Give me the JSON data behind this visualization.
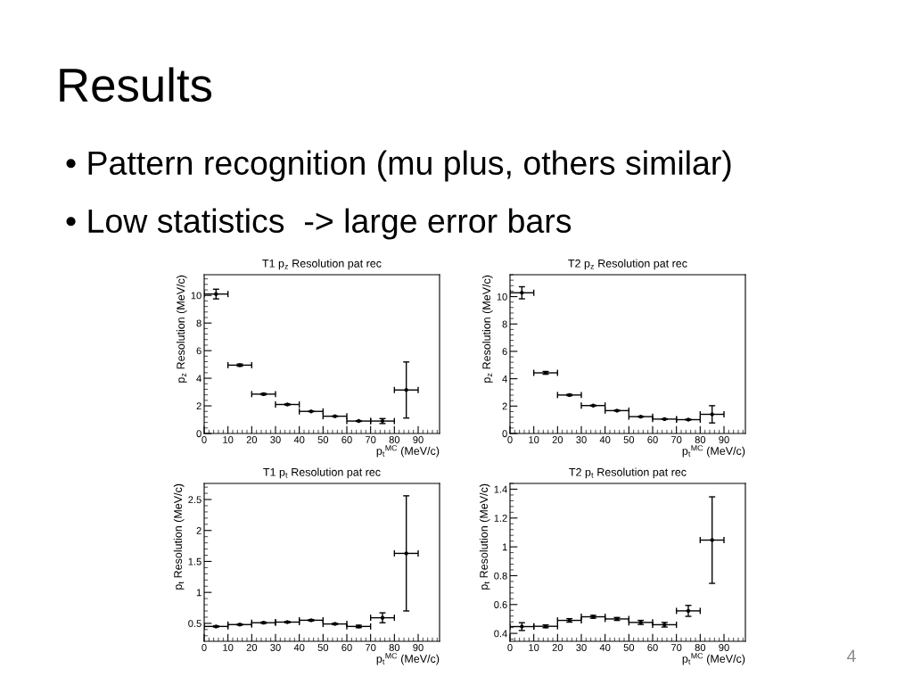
{
  "chart_data": [
    {
      "type": "other",
      "title": "Results",
      "annotations": [
        "• Pattern recognition (mu plus, others similar)",
        "• Low statistics  -> large error bars",
        "4"
      ]
    },
    {
      "type": "scatter",
      "title": "T1 p$_{z}$ Resolution pat rec",
      "xlabel": "p$_{t}$$^{MC}$ (MeV/c)",
      "ylabel": "p$_{z}$ Resolution (MeV/c)",
      "x": [
        5,
        15,
        25,
        35,
        45,
        55,
        65,
        75,
        85
      ],
      "values": [
        10.1,
        4.95,
        2.85,
        2.1,
        1.6,
        1.25,
        0.9,
        0.9,
        3.15
      ],
      "errors": [
        0.35,
        0.08,
        0.05,
        0.04,
        0.02,
        0.02,
        0.03,
        0.18,
        2.03
      ],
      "xerrors": [
        5,
        5,
        5,
        5,
        5,
        5,
        5,
        5,
        5
      ],
      "color": "#000000",
      "marker": "circle",
      "xlim": [
        0,
        99
      ],
      "xticks": [
        0,
        10,
        20,
        30,
        40,
        50,
        60,
        70,
        80,
        90
      ],
      "ylim": [
        0,
        11.5
      ],
      "yticks": [
        0,
        2,
        4,
        6,
        8,
        10
      ]
    },
    {
      "type": "scatter",
      "title": "T2 p$_{z}$ Resolution pat rec",
      "xlabel": "p$_{t}$$^{MC}$ (MeV/c)",
      "ylabel": "p$_{z}$ Resolution (MeV/c)",
      "x": [
        5,
        15,
        25,
        35,
        45,
        55,
        65,
        75,
        85
      ],
      "values": [
        10.28,
        4.43,
        2.81,
        2.04,
        1.67,
        1.23,
        1.05,
        1.01,
        1.4
      ],
      "errors": [
        0.44,
        0.1,
        0.05,
        0.03,
        0.03,
        0.03,
        0.03,
        0.03,
        0.63
      ],
      "xerrors": [
        5,
        5,
        5,
        5,
        5,
        5,
        5,
        5,
        5
      ],
      "color": "#000000",
      "marker": "circle",
      "xlim": [
        0,
        99
      ],
      "xticks": [
        0,
        10,
        20,
        30,
        40,
        50,
        60,
        70,
        80,
        90
      ],
      "ylim": [
        0,
        11.6
      ],
      "yticks": [
        0,
        2,
        4,
        6,
        8,
        10
      ]
    },
    {
      "type": "scatter",
      "title": "T1 p$_{t}$ Resolution pat rec",
      "xlabel": "p$_{t}$$^{MC}$ (MeV/c)",
      "ylabel": "p$_{t}$ Resolution (MeV/c)",
      "x": [
        5,
        15,
        25,
        35,
        45,
        55,
        65,
        75,
        85
      ],
      "values": [
        0.45,
        0.48,
        0.51,
        0.52,
        0.55,
        0.49,
        0.45,
        0.59,
        1.63
      ],
      "errors": [
        0.01,
        0.01,
        0.01,
        0.01,
        0.01,
        0.01,
        0.02,
        0.08,
        0.93
      ],
      "xerrors": [
        5,
        5,
        5,
        5,
        5,
        5,
        5,
        5,
        5
      ],
      "color": "#000000",
      "marker": "circle",
      "xlim": [
        0,
        99
      ],
      "xticks": [
        0,
        10,
        20,
        30,
        40,
        50,
        60,
        70,
        80,
        90
      ],
      "ylim": [
        0.21,
        2.76
      ],
      "yticks": [
        0.5,
        1,
        1.5,
        2,
        2.5
      ]
    },
    {
      "type": "scatter",
      "title": "T2 p$_{t}$ Resolution pat rec",
      "xlabel": "p$_{t}$$^{MC}$ (MeV/c)",
      "ylabel": "p$_{t}$ Resolution (MeV/c)",
      "x": [
        5,
        15,
        25,
        35,
        45,
        55,
        65,
        75,
        85
      ],
      "values": [
        0.447,
        0.449,
        0.49,
        0.515,
        0.5,
        0.476,
        0.46,
        0.556,
        1.047
      ],
      "errors": [
        0.027,
        0.01,
        0.012,
        0.01,
        0.01,
        0.014,
        0.016,
        0.038,
        0.3
      ],
      "xerrors": [
        5,
        5,
        5,
        5,
        5,
        5,
        5,
        5,
        5
      ],
      "color": "#000000",
      "marker": "circle",
      "xlim": [
        0,
        99
      ],
      "xticks": [
        0,
        10,
        20,
        30,
        40,
        50,
        60,
        70,
        80,
        90
      ],
      "ylim": [
        0.345,
        1.44
      ],
      "yticks": [
        0.4,
        0.6,
        0.8,
        1,
        1.2,
        1.4
      ]
    }
  ]
}
